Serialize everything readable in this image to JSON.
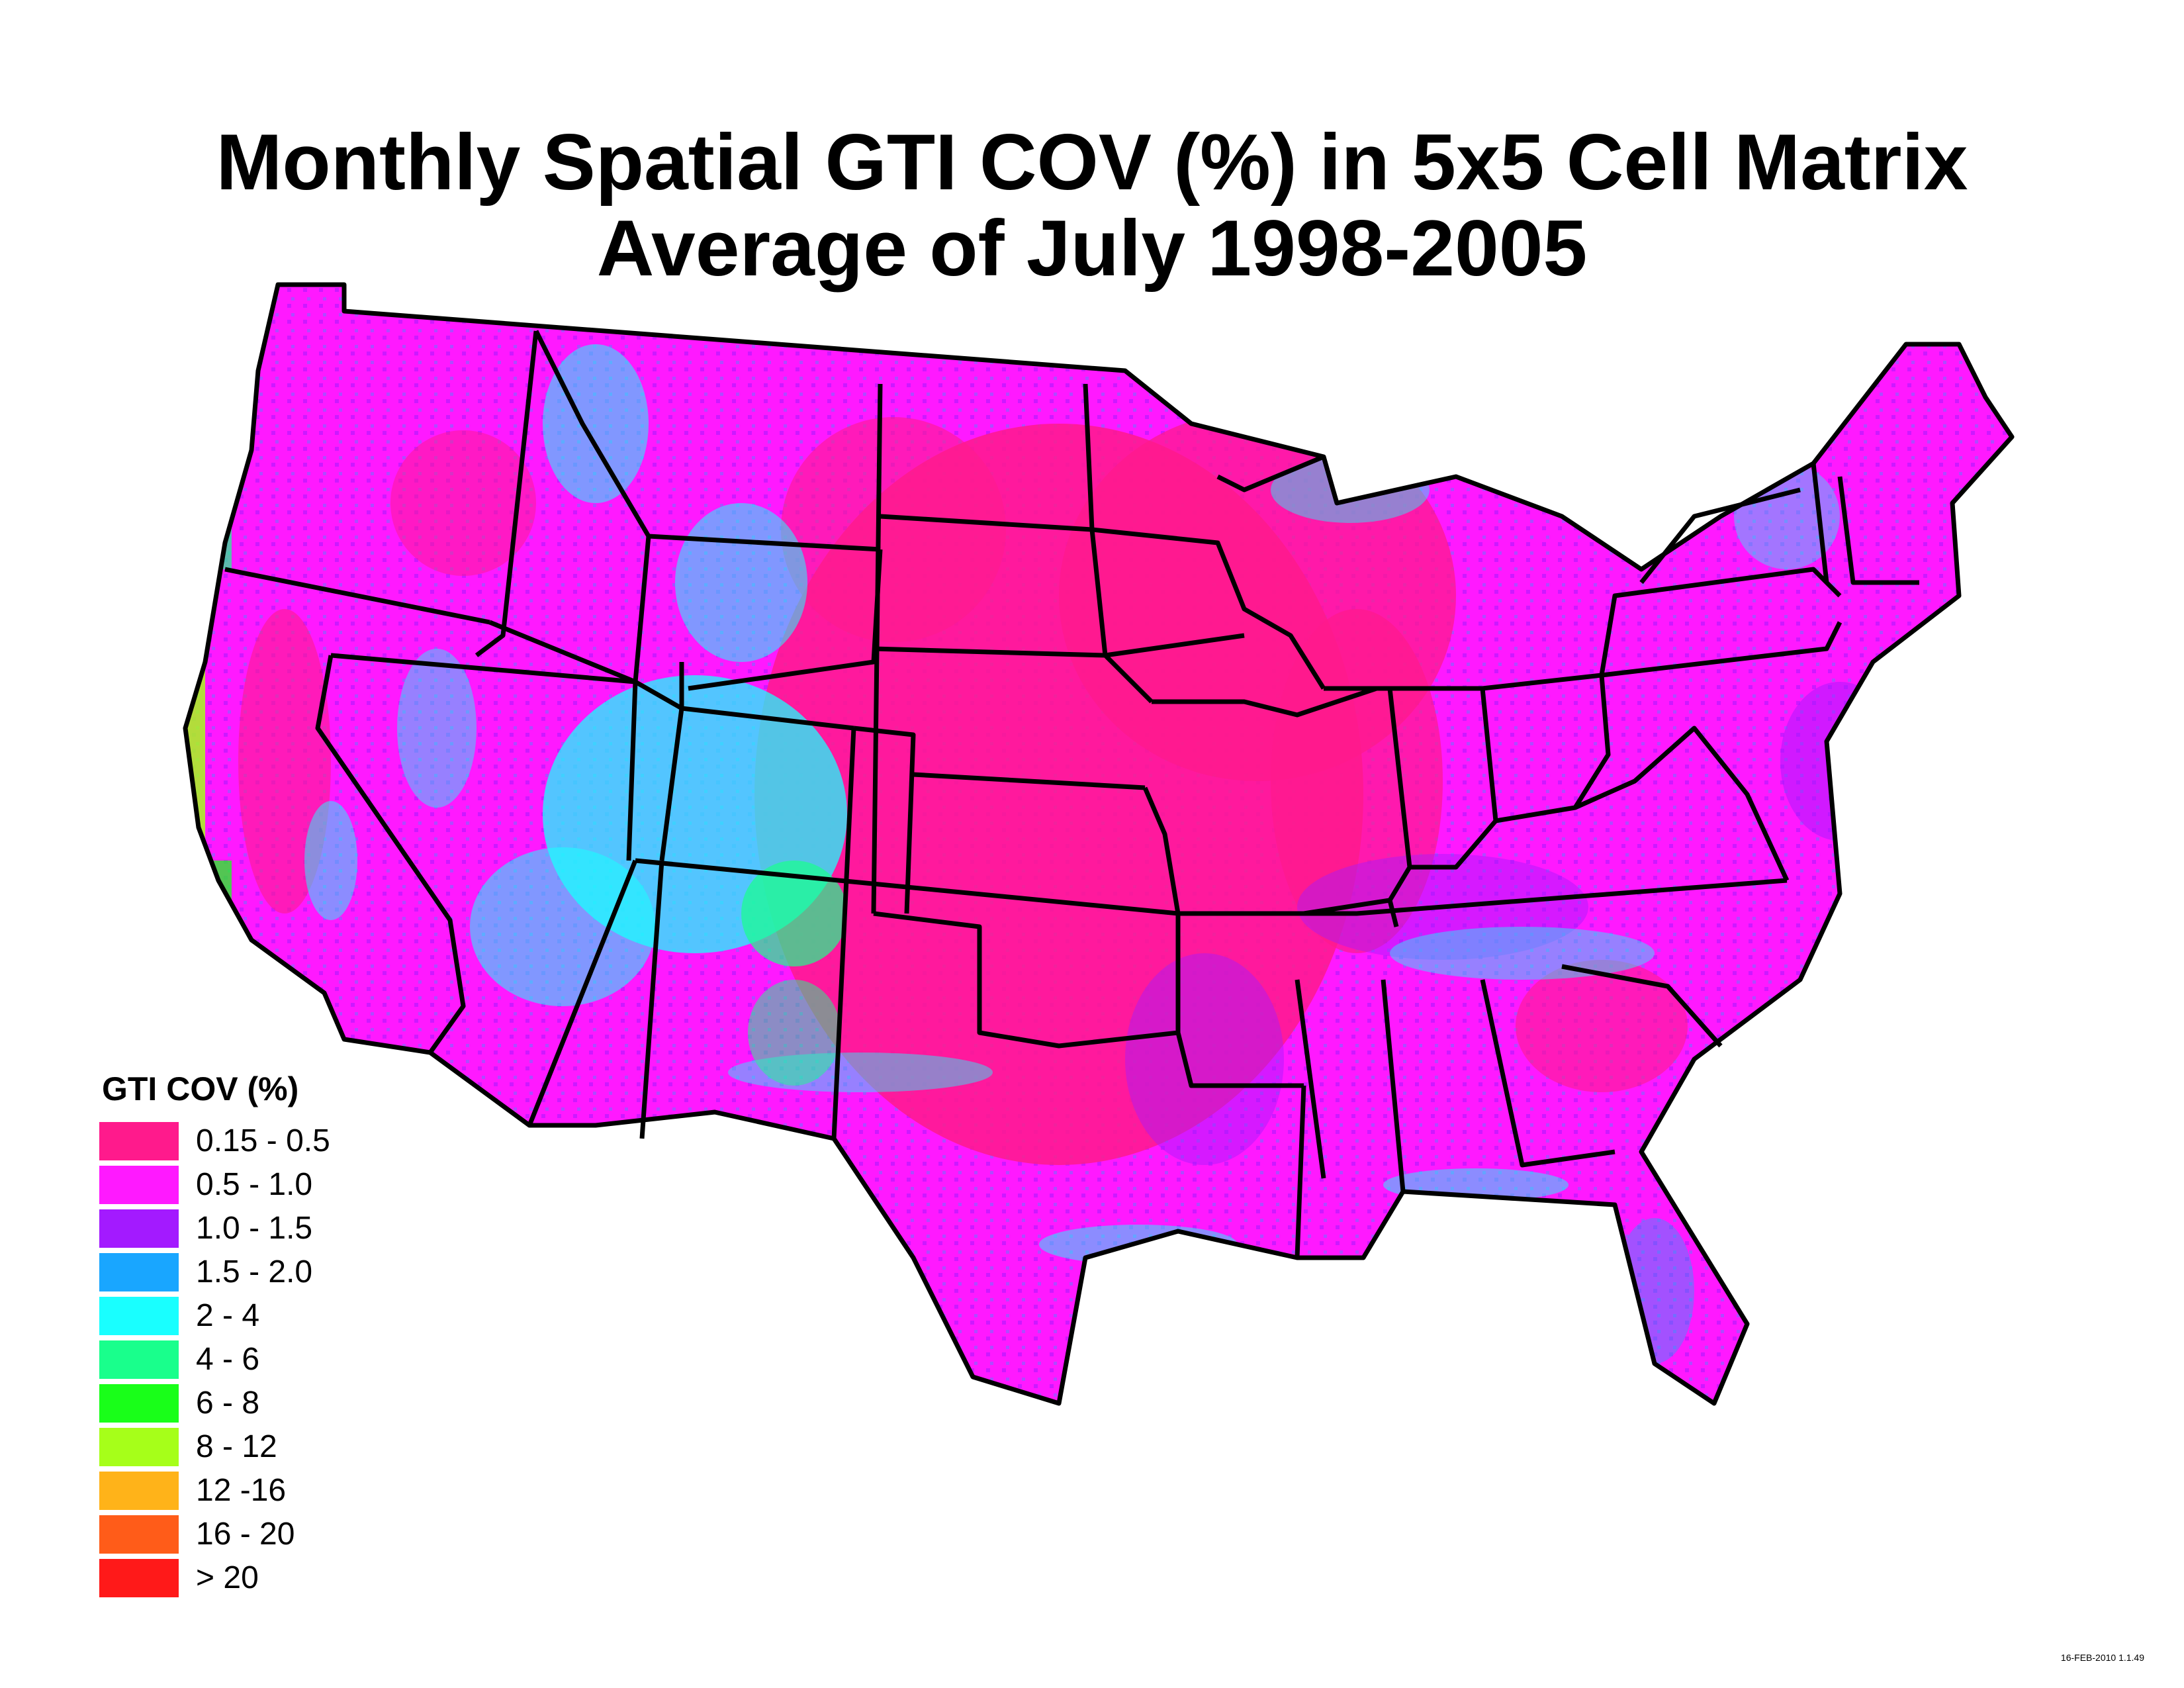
{
  "title_line1": "Monthly Spatial GTI COV (%) in 5x5 Cell Matrix",
  "title_line2": "Average of July 1998-2005",
  "legend": {
    "title": "GTI COV (%)",
    "items": [
      {
        "label": "0.15 - 0.5",
        "color": "#ff1a8c"
      },
      {
        "label": "0.5 - 1.0",
        "color": "#ff19ff"
      },
      {
        "label": "1.0 - 1.5",
        "color": "#a31aff"
      },
      {
        "label": "1.5 - 2.0",
        "color": "#19a6ff"
      },
      {
        "label": "2 - 4",
        "color": "#19ffff"
      },
      {
        "label": "4 - 6",
        "color": "#19ff8c"
      },
      {
        "label": "6 - 8",
        "color": "#19ff19"
      },
      {
        "label": "8 - 12",
        "color": "#a6ff19"
      },
      {
        "label": "12 -16",
        "color": "#ffb319"
      },
      {
        "label": "16 - 20",
        "color": "#ff5c19"
      },
      {
        "label": "> 20",
        "color": "#ff1919"
      }
    ]
  },
  "stamp": "16-FEB-2010 1.1.49",
  "colors": {
    "outline": "#000000",
    "background": "#ffffff"
  }
}
